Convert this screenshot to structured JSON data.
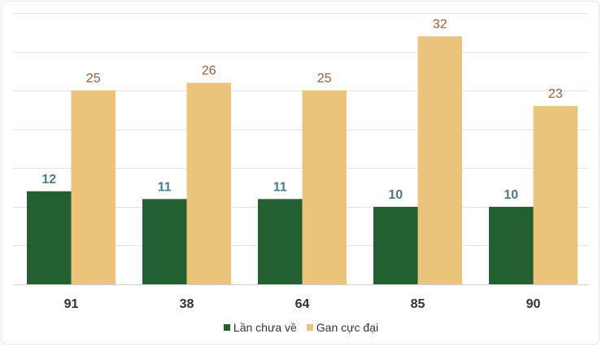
{
  "chart_data": {
    "type": "bar",
    "categories": [
      "91",
      "38",
      "64",
      "85",
      "90"
    ],
    "series": [
      {
        "name": "Lần chưa về",
        "values": [
          12,
          11,
          11,
          10,
          10
        ],
        "color": "#245f32",
        "label_color": "#4e7a8c"
      },
      {
        "name": "Gan cực đại",
        "values": [
          25,
          26,
          25,
          32,
          23
        ],
        "color": "#e9c47a",
        "label_color": "#9c5a3a"
      }
    ],
    "title": "",
    "xlabel": "",
    "ylabel": "",
    "ylim": [
      0,
      35
    ],
    "gridlines": true,
    "legend": "bottom"
  }
}
